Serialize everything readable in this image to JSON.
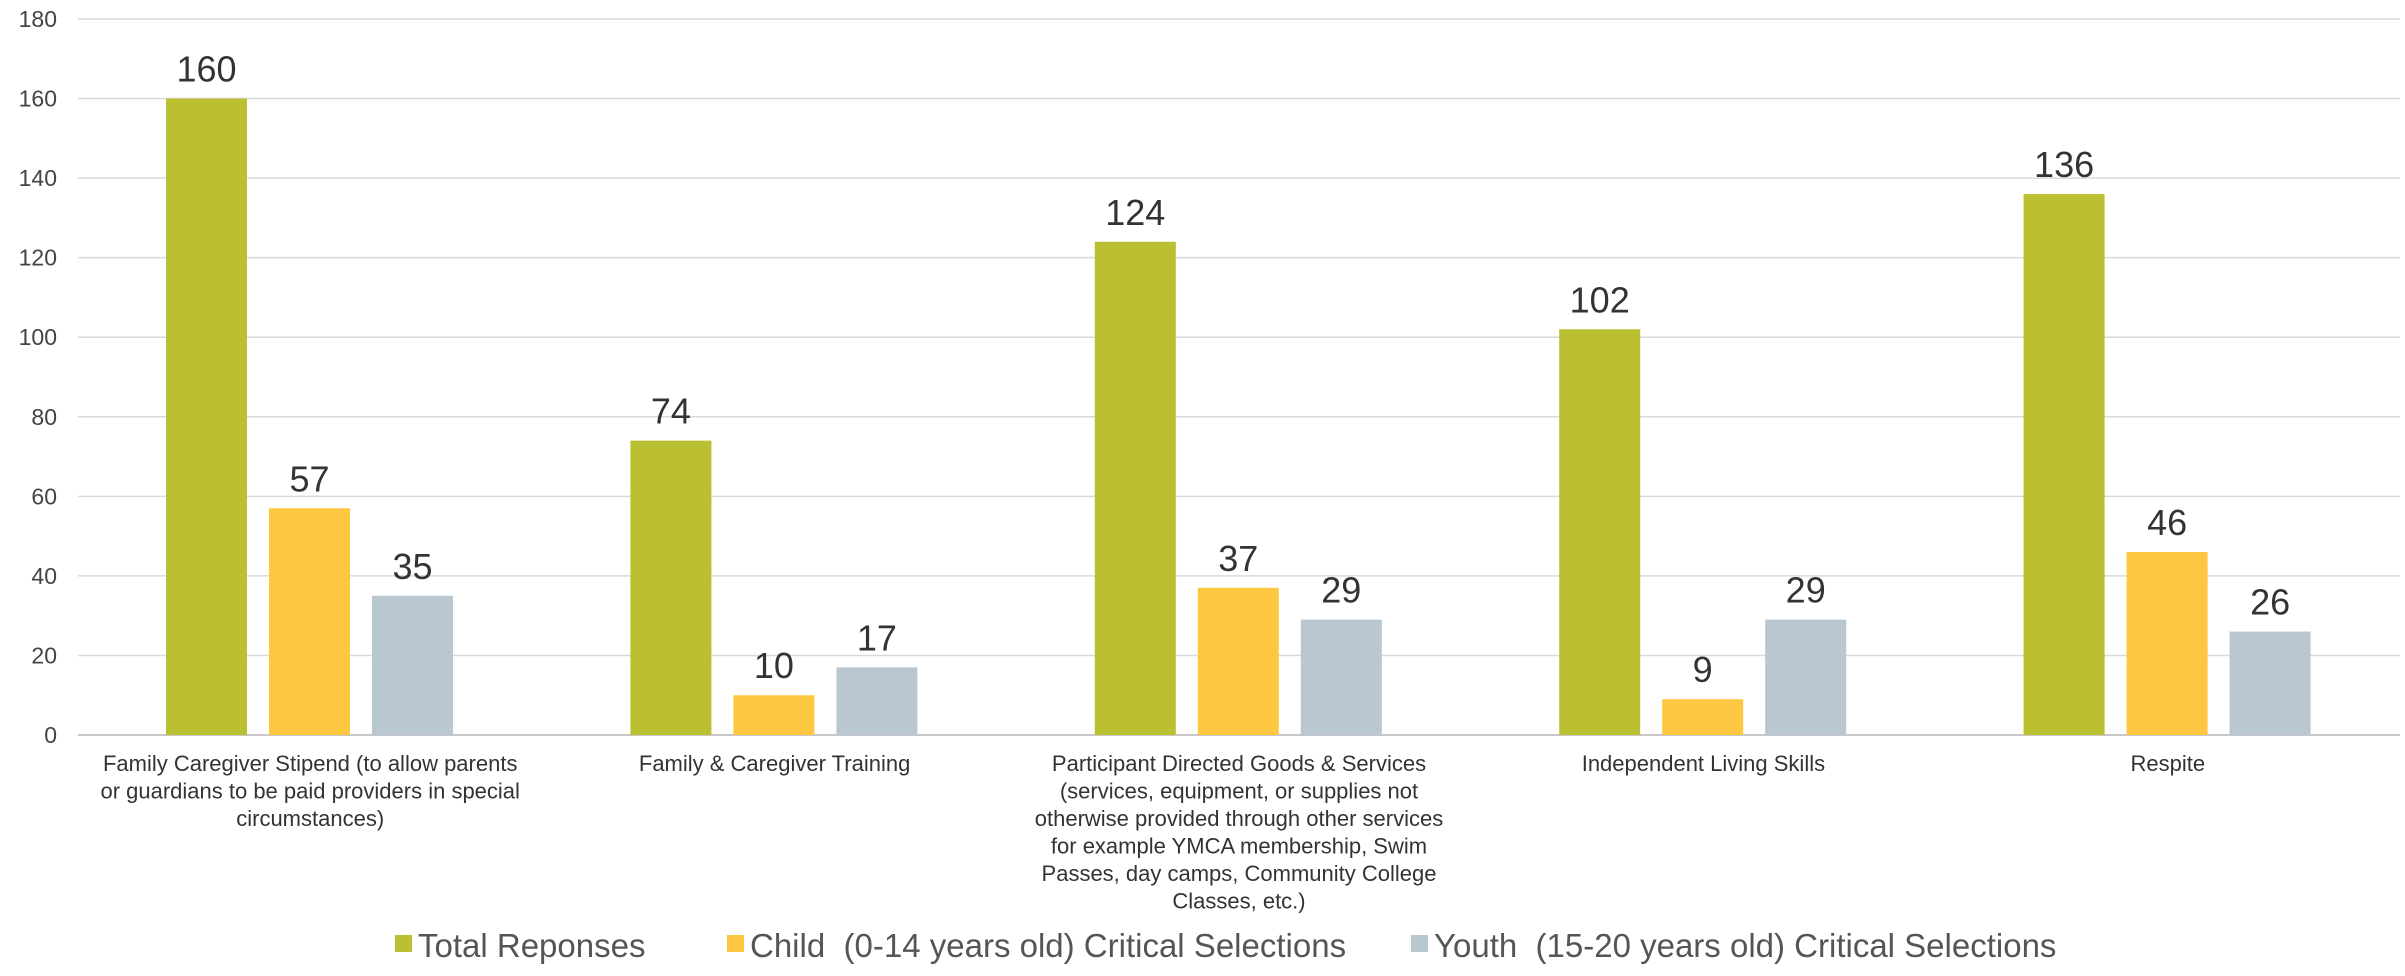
{
  "chart_data": {
    "type": "bar",
    "title": "",
    "xlabel": "",
    "ylabel": "",
    "ylim": [
      0,
      180
    ],
    "yticks": [
      0,
      20,
      40,
      60,
      80,
      100,
      120,
      140,
      160,
      180
    ],
    "grid": true,
    "legend_position": "bottom",
    "categories": [
      [
        "Family Caregiver Stipend (to allow parents",
        "or guardians to be paid providers in special",
        "circumstances)"
      ],
      [
        "Family & Caregiver Training"
      ],
      [
        "Participant Directed Goods & Services",
        "(services, equipment, or supplies not",
        "otherwise provided through other services",
        "for example YMCA membership, Swim",
        "Passes, day camps, Community College",
        "Classes, etc.)"
      ],
      [
        "Independent Living Skills"
      ],
      [
        "Respite"
      ]
    ],
    "series": [
      {
        "name": "Total Reponses",
        "color": "#bbbf32",
        "values": [
          160,
          74,
          124,
          102,
          136
        ]
      },
      {
        "name": "Child  (0-14 years old) Critical Selections",
        "color": "#fdc741",
        "values": [
          57,
          10,
          37,
          9,
          46
        ]
      },
      {
        "name": "Youth  (15-20 years old) Critical Selections",
        "color": "#b9c7d1",
        "values": [
          35,
          17,
          29,
          29,
          26
        ]
      }
    ]
  }
}
